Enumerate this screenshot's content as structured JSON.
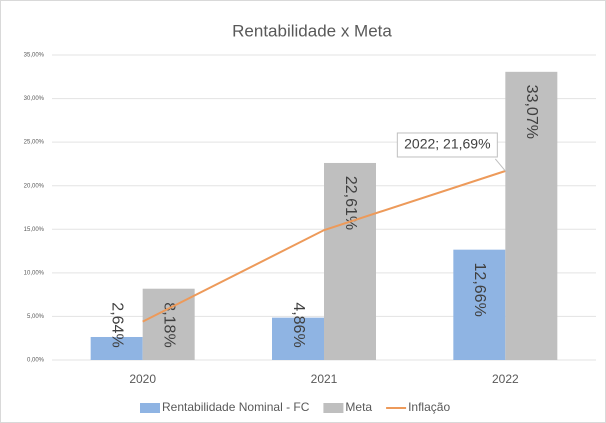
{
  "chart_data": {
    "type": "bar",
    "title": "Rentabilidade x Meta",
    "categories": [
      "2020",
      "2021",
      "2022"
    ],
    "series": [
      {
        "name": "Rentabilidade Nominal - FC",
        "type": "bar",
        "color": "#8fb4e3",
        "values": [
          2.64,
          4.86,
          12.66
        ],
        "value_labels": [
          "2,64%",
          "4,86%",
          "12,66%"
        ]
      },
      {
        "name": "Meta",
        "type": "bar",
        "color": "#bfbfbf",
        "values": [
          8.18,
          22.61,
          33.07
        ],
        "value_labels": [
          "8,18%",
          "22,61%",
          "33,07%"
        ]
      },
      {
        "name": "Inflação",
        "type": "line",
        "color": "#ed9a5a",
        "values": [
          4.4,
          14.9,
          21.69
        ],
        "value_labels": [
          null,
          null,
          "2022; 21,69%"
        ]
      }
    ],
    "ylim": [
      0,
      35
    ],
    "yticks": [
      {
        "value": 0,
        "label": "0,00%"
      },
      {
        "value": 5,
        "label": "5,00%"
      },
      {
        "value": 10,
        "label": "10,00%"
      },
      {
        "value": 15,
        "label": "15,00%"
      },
      {
        "value": 20,
        "label": "20,00%"
      },
      {
        "value": 25,
        "label": "25,00%"
      },
      {
        "value": 30,
        "label": "30,00%"
      },
      {
        "value": 35,
        "label": "35,00%"
      }
    ],
    "grid": true,
    "legend": "bottom"
  }
}
